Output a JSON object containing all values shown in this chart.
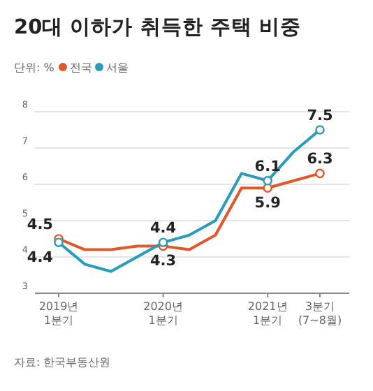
{
  "chart_data": {
    "type": "line",
    "title": "20대 이하가 취득한 주택 비중",
    "ylabel": "단위: %",
    "categories": [
      "2019년\n1분기",
      null,
      null,
      null,
      "2020년\n1분기",
      null,
      null,
      null,
      "2021년\n1분기",
      null,
      "3분기\n(7~8월)"
    ],
    "series": [
      {
        "name": "전국",
        "color": "#e0582a",
        "values": [
          4.5,
          4.2,
          4.2,
          4.3,
          4.3,
          4.2,
          4.6,
          5.9,
          5.9,
          6.1,
          6.3
        ],
        "value_labels": [
          "4.5",
          null,
          null,
          null,
          "4.3",
          null,
          null,
          null,
          "5.9",
          null,
          "6.3"
        ]
      },
      {
        "name": "서울",
        "color": "#2a9cb8",
        "values": [
          4.4,
          3.8,
          3.6,
          4.0,
          4.4,
          4.6,
          5.0,
          6.3,
          6.1,
          6.9,
          7.5
        ],
        "value_labels": [
          "4.4",
          null,
          null,
          null,
          "4.4",
          null,
          null,
          null,
          "6.1",
          null,
          "7.5"
        ]
      }
    ],
    "ylim": [
      3,
      8
    ],
    "yticks": [
      3,
      4,
      5,
      6,
      7,
      8
    ],
    "grid": "y",
    "legend": "top left",
    "annotations": [
      "자료: 한국부동산원"
    ]
  }
}
